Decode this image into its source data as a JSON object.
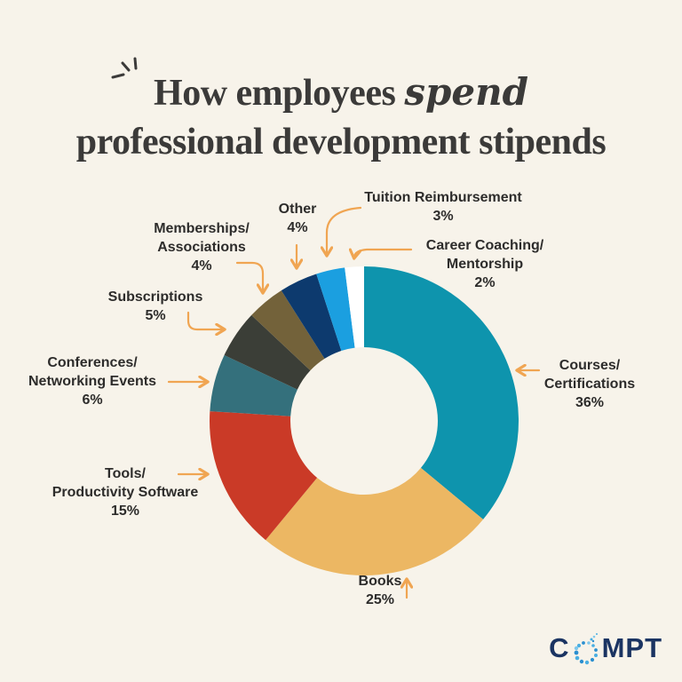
{
  "title": {
    "line1_regular": "How employees",
    "line1_script": "spend",
    "line2": "professional development stipends"
  },
  "chart_data": {
    "type": "pie",
    "subtype": "donut",
    "title": "How employees spend professional development stipends",
    "unit": "%",
    "start_angle_deg": 0,
    "direction": "clockwise",
    "legend_position": "callout-labels-with-arrows",
    "slices": [
      {
        "label": "Courses/Certifications",
        "value": 36,
        "pct_text": "36%",
        "color": "#0e94ad",
        "label_lines": [
          "Courses/",
          "Certifications"
        ]
      },
      {
        "label": "Books",
        "value": 25,
        "pct_text": "25%",
        "color": "#ecb763",
        "label_lines": [
          "Books"
        ]
      },
      {
        "label": "Tools/Productivity Software",
        "value": 15,
        "pct_text": "15%",
        "color": "#ca3a27",
        "label_lines": [
          "Tools/",
          "Productivity Software"
        ]
      },
      {
        "label": "Conferences/Networking Events",
        "value": 6,
        "pct_text": "6%",
        "color": "#34707c",
        "label_lines": [
          "Conferences/",
          "Networking Events"
        ]
      },
      {
        "label": "Subscriptions",
        "value": 5,
        "pct_text": "5%",
        "color": "#3b3e37",
        "label_lines": [
          "Subscriptions"
        ]
      },
      {
        "label": "Memberships/Associations",
        "value": 4,
        "pct_text": "4%",
        "color": "#73623a",
        "label_lines": [
          "Memberships/",
          "Associations"
        ]
      },
      {
        "label": "Other",
        "value": 4,
        "pct_text": "4%",
        "color": "#0d3a6e",
        "label_lines": [
          "Other"
        ]
      },
      {
        "label": "Tuition Reimbursement",
        "value": 3,
        "pct_text": "3%",
        "color": "#1b9fe0",
        "label_lines": [
          "Tuition Reimbursement"
        ]
      },
      {
        "label": "Career Coaching/Mentorship",
        "value": 2,
        "pct_text": "2%",
        "color": "#ffffff",
        "label_lines": [
          "Career Coaching/",
          "Mentorship"
        ]
      }
    ]
  },
  "logo": {
    "text": "COMPT",
    "before_o": "C",
    "after_o": "MPT"
  },
  "colors": {
    "background": "#f7f3ea",
    "title_text": "#3b3a39",
    "label_text": "#2d2c2b",
    "arrow": "#f0a552",
    "logo_navy": "#1b3462",
    "logo_dot_blue": "#3fa9e0"
  }
}
